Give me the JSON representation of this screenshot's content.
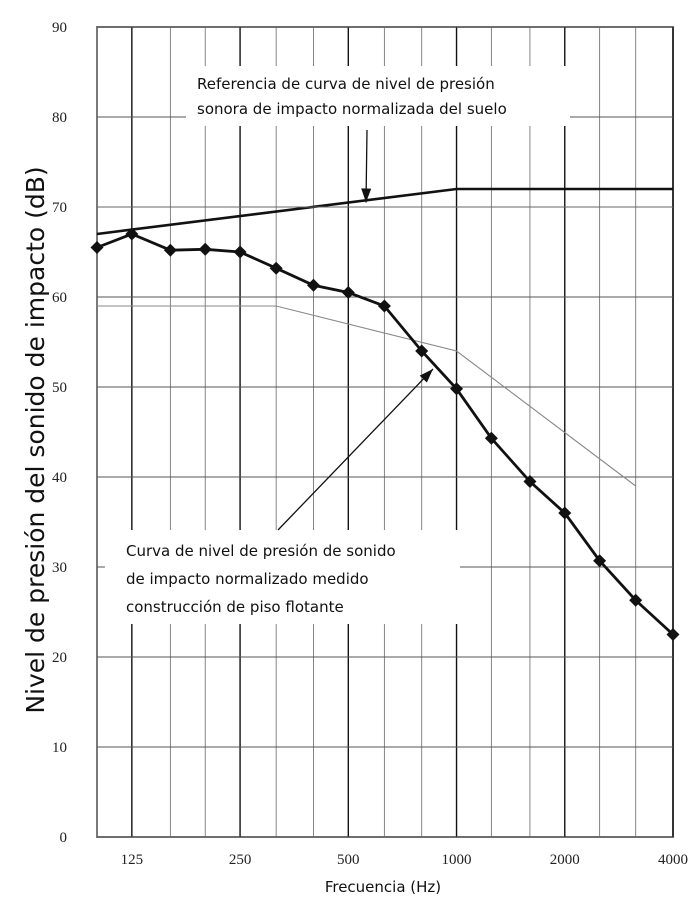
{
  "chart_data": {
    "type": "line",
    "xlabel": "Frecuencia (Hz)",
    "ylabel": "Nivel de presión del sonido de impacto (dB)",
    "x_scale": "log",
    "xlim": [
      100,
      4000
    ],
    "ylim": [
      0,
      90
    ],
    "x_tick_labels": [
      "125",
      "250",
      "500",
      "1000",
      "2000",
      "4000"
    ],
    "y_tick_labels": [
      "0",
      "10",
      "20",
      "30",
      "40",
      "50",
      "60",
      "70",
      "80",
      "90"
    ],
    "x_tick_values": [
      125,
      250,
      500,
      1000,
      2000,
      4000
    ],
    "y_tick_values": [
      0,
      10,
      20,
      30,
      40,
      50,
      60,
      70,
      80,
      90
    ],
    "grid": true,
    "series": [
      {
        "name": "",
        "style": "thick-line",
        "color": "#111111",
        "x": [
          100,
          1000,
          4000
        ],
        "y": [
          67,
          72,
          72
        ]
      },
      {
        "name": "",
        "style": "thin-line",
        "color": "#666666",
        "x": [
          100,
          1000,
          4000
        ],
        "y": [
          70,
          70,
          70
        ]
      },
      {
        "name": "",
        "style": "thin-line",
        "color": "#888888",
        "x": [
          100,
          315,
          1000,
          3150
        ],
        "y": [
          59,
          59,
          54,
          39
        ]
      },
      {
        "name": "",
        "style": "diamond-markers",
        "color": "#111111",
        "x": [
          100,
          125,
          160,
          200,
          250,
          315,
          400,
          500,
          630,
          800,
          1000,
          1250,
          1600,
          2000,
          2500,
          3150,
          4000
        ],
        "y": [
          65.5,
          67,
          65.2,
          65.3,
          65,
          63.2,
          61.3,
          60.5,
          59,
          54,
          49.8,
          44.3,
          39.5,
          36,
          30.7,
          26.3,
          22.5
        ]
      }
    ],
    "annotations": [
      {
        "id": "ref",
        "text_lines": [
          "Referencia de curva de nivel de presión",
          "sonora de impacto normalizada del suelo"
        ],
        "arrow_to": {
          "x": 560,
          "y": 70.5
        }
      },
      {
        "id": "measured",
        "text_lines": [
          "Curva de nivel de presión de sonido",
          "de impacto normalizado medido",
          "construcción de piso flotante"
        ],
        "arrow_to": {
          "x": 860,
          "y": 52
        }
      }
    ]
  }
}
